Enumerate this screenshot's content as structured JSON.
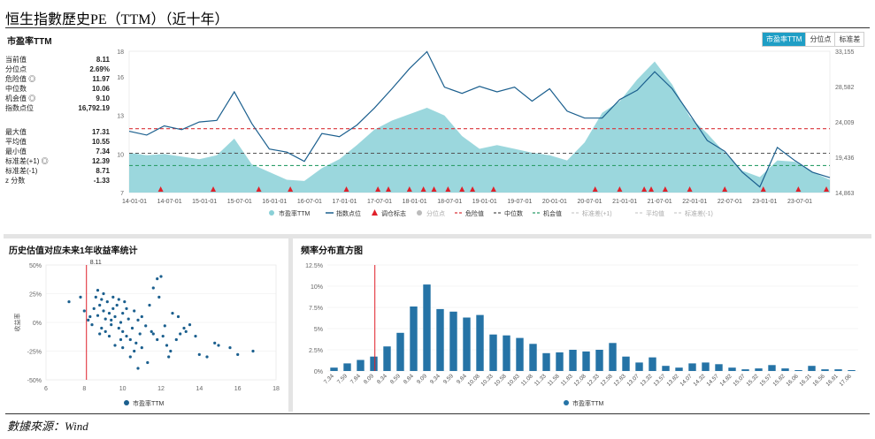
{
  "page_title": "恒生指數歷史PE（TTM）（近十年）",
  "source": "數據來源：Wind",
  "tabs": [
    {
      "label": "市盈率TTM",
      "active": true
    },
    {
      "label": "分位点",
      "active": false
    },
    {
      "label": "标准差",
      "active": false
    }
  ],
  "top_panel": {
    "title": "市盈率TTM",
    "stats_group1": [
      {
        "label": "当前值",
        "value": "8.11"
      },
      {
        "label": "分位点",
        "value": "2.69%"
      },
      {
        "label": "危险值 ◎",
        "value": "11.97"
      },
      {
        "label": "中位数",
        "value": "10.06"
      },
      {
        "label": "机会值 ◎",
        "value": "9.10"
      },
      {
        "label": "指数点位",
        "value": "16,792.19"
      }
    ],
    "stats_group2": [
      {
        "label": "最大值",
        "value": "17.31"
      },
      {
        "label": "平均值",
        "value": "10.55"
      },
      {
        "label": "最小值",
        "value": "7.34"
      },
      {
        "label": "标准差(+1) ◎",
        "value": "12.39"
      },
      {
        "label": "标准差(-1)",
        "value": "8.71"
      },
      {
        "label": "z 分数",
        "value": "-1.33"
      }
    ]
  },
  "scatter_panel": {
    "title": "历史估值对应未来1年收益率统计",
    "marker_label": "8.11",
    "legend": "市盈率TTM"
  },
  "hist_panel": {
    "title": "频率分布直方图",
    "legend": "市盈率TTM"
  },
  "colors": {
    "pe_area": "#8ad0d7",
    "index_line": "#1b5f8e",
    "danger": "#d9343a",
    "median": "#555555",
    "opportunity": "#2e9e6a",
    "bar": "#2573a6",
    "accent": "#1f9ec5"
  },
  "chart_data": [
    {
      "type": "area",
      "x_ticks": [
        "14-01-01",
        "14-07-01",
        "15-01-01",
        "15-07-01",
        "16-01-01",
        "16-07-01",
        "17-01-01",
        "17-07-01",
        "18-01-01",
        "18-07-01",
        "19-01-01",
        "19-07-01",
        "20-01-01",
        "20-07-01",
        "21-01-01",
        "21-07-01",
        "22-01-01",
        "22-07-01",
        "23-01-01",
        "23-07-01"
      ],
      "y_left": {
        "ticks": [
          "7",
          "10",
          "13",
          "16",
          "18"
        ],
        "lim": [
          7,
          18
        ]
      },
      "y_right": {
        "ticks": [
          "14,863",
          "19,436",
          "24,009",
          "28,582",
          "33,155"
        ],
        "lim": [
          14863,
          33155
        ]
      },
      "series": [
        {
          "name": "市盈率TTM",
          "kind": "area",
          "x": [
            0,
            0.25,
            0.5,
            0.75,
            1,
            1.25,
            1.5,
            1.75,
            2,
            2.25,
            2.5,
            2.75,
            3,
            3.25,
            3.5,
            3.75,
            4,
            4.25,
            4.5,
            4.75,
            5,
            5.25,
            5.5,
            5.75,
            6,
            6.25,
            6.5,
            6.75,
            7,
            7.25,
            7.5,
            7.75,
            8,
            8.25,
            8.5,
            8.75,
            9,
            9.25,
            9.5,
            9.75,
            10
          ],
          "values": [
            10.1,
            9.9,
            10.0,
            9.8,
            9.6,
            9.9,
            11.2,
            9.2,
            8.6,
            8.0,
            7.9,
            8.9,
            9.6,
            10.7,
            11.9,
            12.6,
            13.1,
            13.6,
            13.0,
            11.4,
            10.4,
            10.7,
            10.4,
            10.1,
            9.9,
            9.5,
            10.9,
            13.2,
            14.1,
            15.8,
            17.2,
            15.4,
            12.9,
            11.6,
            10.1,
            8.7,
            8.2,
            9.5,
            9.4,
            8.6,
            8.0
          ]
        },
        {
          "name": "指数点位",
          "kind": "line",
          "x": [
            0,
            0.25,
            0.5,
            0.75,
            1,
            1.25,
            1.5,
            1.75,
            2,
            2.25,
            2.5,
            2.75,
            3,
            3.25,
            3.5,
            3.75,
            4,
            4.25,
            4.5,
            4.75,
            5,
            5.25,
            5.5,
            5.75,
            6,
            6.25,
            6.5,
            6.75,
            7,
            7.25,
            7.5,
            7.75,
            8,
            8.25,
            8.5,
            8.75,
            9,
            9.25,
            9.5,
            9.75,
            10
          ],
          "values": [
            22800,
            22300,
            23500,
            23000,
            24000,
            24200,
            27900,
            23800,
            20500,
            20100,
            18900,
            22500,
            22100,
            23600,
            25800,
            28300,
            30900,
            33100,
            28500,
            27700,
            28600,
            27900,
            28500,
            26700,
            28300,
            25400,
            24500,
            24500,
            26900,
            28100,
            30500,
            28300,
            25000,
            21600,
            20200,
            17500,
            15600,
            20700,
            19000,
            17500,
            16800
          ]
        }
      ],
      "signal_x": [
        0.45,
        1.2,
        1.85,
        2.3,
        3.1,
        3.55,
        3.7,
        4.0,
        4.2,
        4.35,
        4.55,
        4.75,
        4.9,
        5.2,
        6.65,
        7.0,
        7.35,
        7.45,
        7.65,
        8.0,
        8.5,
        9.05,
        9.55,
        9.95
      ],
      "reference_lines": [
        {
          "name": "危险值",
          "value": 11.97
        },
        {
          "name": "中位数",
          "value": 10.06
        },
        {
          "name": "机会值",
          "value": 9.1
        }
      ],
      "legend": [
        "市盈率TTM",
        "指数点位",
        "调仓标志",
        "分位点",
        "危险值",
        "中位数",
        "机会值",
        "标准差(+1)",
        "平均值",
        "标准差(-1)"
      ]
    },
    {
      "type": "scatter",
      "x_ticks": [
        "6",
        "8",
        "10",
        "12",
        "14",
        "16",
        "18"
      ],
      "y_ticks": [
        "50%",
        "25%",
        "0%",
        "-25%",
        "-50%"
      ],
      "xlim": [
        6,
        18
      ],
      "ylim": [
        -50,
        50
      ],
      "ylabel": "收益率",
      "marker_x": 8.11,
      "points": [
        [
          7.2,
          18
        ],
        [
          7.8,
          22
        ],
        [
          8.0,
          10
        ],
        [
          8.3,
          5
        ],
        [
          8.5,
          12
        ],
        [
          8.6,
          22
        ],
        [
          8.7,
          28
        ],
        [
          8.8,
          15
        ],
        [
          8.9,
          20
        ],
        [
          9.0,
          25
        ],
        [
          9.0,
          10
        ],
        [
          9.1,
          3
        ],
        [
          9.2,
          18
        ],
        [
          9.3,
          8
        ],
        [
          9.4,
          -2
        ],
        [
          9.5,
          12
        ],
        [
          9.5,
          22
        ],
        [
          9.6,
          5
        ],
        [
          9.7,
          15
        ],
        [
          9.8,
          -5
        ],
        [
          9.9,
          0
        ],
        [
          10.0,
          8
        ],
        [
          10.0,
          -8
        ],
        [
          10.1,
          18
        ],
        [
          10.2,
          -12
        ],
        [
          10.3,
          3
        ],
        [
          10.4,
          -15
        ],
        [
          10.5,
          -5
        ],
        [
          10.6,
          10
        ],
        [
          10.7,
          -18
        ],
        [
          10.8,
          2
        ],
        [
          10.9,
          -10
        ],
        [
          11.0,
          -22
        ],
        [
          11.0,
          5
        ],
        [
          11.2,
          -3
        ],
        [
          11.4,
          15
        ],
        [
          11.5,
          -8
        ],
        [
          11.6,
          30
        ],
        [
          11.8,
          38
        ],
        [
          11.9,
          22
        ],
        [
          12.0,
          40
        ],
        [
          12.1,
          -12
        ],
        [
          12.3,
          -20
        ],
        [
          12.5,
          -25
        ],
        [
          12.8,
          -15
        ],
        [
          13.2,
          -5
        ],
        [
          13.8,
          -12
        ],
        [
          14.0,
          -28
        ],
        [
          14.4,
          -30
        ],
        [
          15.0,
          -20
        ],
        [
          15.6,
          -22
        ],
        [
          16.0,
          -28
        ],
        [
          16.8,
          -25
        ],
        [
          8.4,
          -2
        ],
        [
          8.9,
          -5
        ],
        [
          9.3,
          -12
        ],
        [
          9.6,
          -20
        ],
        [
          10.0,
          -22
        ],
        [
          10.4,
          -30
        ],
        [
          10.8,
          -40
        ],
        [
          11.3,
          -35
        ],
        [
          12.2,
          -3
        ],
        [
          12.6,
          8
        ],
        [
          13.5,
          -2
        ],
        [
          8.2,
          2
        ],
        [
          8.7,
          6
        ],
        [
          9.8,
          20
        ],
        [
          10.2,
          12
        ],
        [
          11.8,
          -15
        ],
        [
          12.9,
          5
        ],
        [
          13.0,
          -10
        ],
        [
          14.8,
          -18
        ],
        [
          9.1,
          -8
        ],
        [
          9.4,
          2
        ],
        [
          10.6,
          -25
        ],
        [
          11.6,
          -10
        ],
        [
          12.4,
          -30
        ],
        [
          13.3,
          -8
        ],
        [
          8.8,
          -10
        ],
        [
          9.9,
          -15
        ]
      ]
    },
    {
      "type": "bar",
      "categories": [
        "7.34",
        "7.59",
        "7.84",
        "8.09",
        "8.34",
        "8.59",
        "8.84",
        "9.09",
        "9.34",
        "9.59",
        "9.84",
        "10.08",
        "10.33",
        "10.58",
        "10.83",
        "11.08",
        "11.33",
        "11.58",
        "11.83",
        "12.08",
        "12.33",
        "12.58",
        "12.83",
        "13.07",
        "13.32",
        "13.57",
        "13.82",
        "14.07",
        "14.32",
        "14.57",
        "14.82",
        "15.07",
        "15.32",
        "15.57",
        "15.82",
        "16.06",
        "16.31",
        "16.56",
        "16.81",
        "17.06"
      ],
      "values": [
        0.4,
        0.9,
        1.3,
        1.7,
        2.9,
        4.5,
        7.6,
        10.2,
        7.3,
        7.0,
        6.3,
        6.6,
        4.3,
        4.2,
        3.9,
        3.2,
        2.1,
        2.2,
        2.5,
        2.3,
        2.5,
        3.3,
        1.7,
        1.0,
        1.6,
        0.6,
        0.4,
        0.9,
        1.0,
        0.8,
        0.4,
        0.2,
        0.3,
        0.7,
        0.3,
        0.1,
        0.6,
        0.2,
        0.2,
        0.1
      ],
      "y_ticks": [
        "12.5%",
        "10%",
        "7.5%",
        "5%",
        "2.5%",
        "0%"
      ],
      "ylim": [
        0,
        12.5
      ],
      "marker_x": 8.11
    }
  ]
}
